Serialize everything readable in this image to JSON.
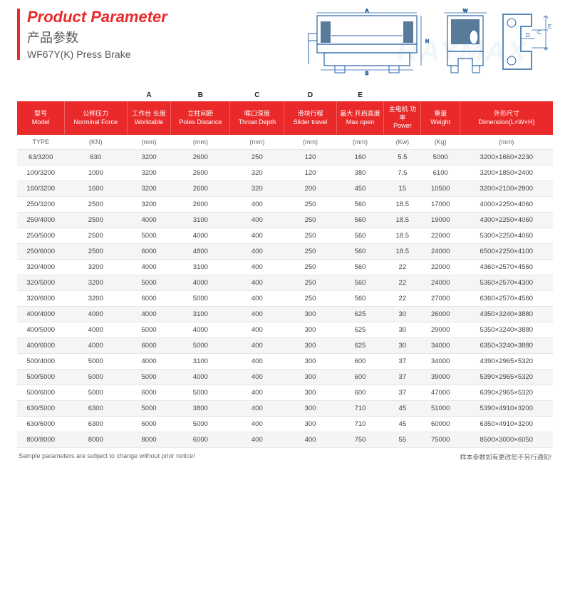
{
  "header": {
    "title_en": "Product Parameter",
    "title_cn": "产品参数",
    "subtitle": "WF67Y(K) Press Brake",
    "watermark": "RAYMAX"
  },
  "topcols": [
    "A",
    "B",
    "C",
    "D",
    "E"
  ],
  "columns": [
    {
      "cn": "型号",
      "en": "Model",
      "w": 56
    },
    {
      "cn": "公称压力",
      "en": "Norminal Force",
      "w": 74
    },
    {
      "cn": "工作台\n长度",
      "en": "Worktable",
      "w": 52
    },
    {
      "cn": "立柱间距",
      "en": "Poles Distance",
      "w": 70
    },
    {
      "cn": "喉口深度",
      "en": "Throat Depth",
      "w": 64
    },
    {
      "cn": "滑块行程",
      "en": "Slider travel",
      "w": 62
    },
    {
      "cn": "最大\n开启高度",
      "en": "Max open",
      "w": 56
    },
    {
      "cn": "主电机\n功率",
      "en": "Power",
      "w": 44
    },
    {
      "cn": "重量",
      "en": "Weight",
      "w": 46
    },
    {
      "cn": "外形尺寸",
      "en": "Dimension(L×W×H)",
      "w": 110
    }
  ],
  "units": [
    "TYPE",
    "(KN)",
    "(mm)",
    "(mm)",
    "(mm)",
    "(mm)",
    "(mm)",
    "(Kw)",
    "(Kg)",
    "(mm)"
  ],
  "rows": [
    [
      "63/3200",
      "630",
      "3200",
      "2600",
      "250",
      "120",
      "160",
      "5.5",
      "5000",
      "3200×1660×2230"
    ],
    [
      "100/3200",
      "1000",
      "3200",
      "2600",
      "320",
      "120",
      "380",
      "7.5",
      "6100",
      "3200×1850×2400"
    ],
    [
      "160/3200",
      "1600",
      "3200",
      "2600",
      "320",
      "200",
      "450",
      "15",
      "10500",
      "3200×2100×2800"
    ],
    [
      "250/3200",
      "2500",
      "3200",
      "2600",
      "400",
      "250",
      "560",
      "18.5",
      "17000",
      "4000×2250×4060"
    ],
    [
      "250/4000",
      "2500",
      "4000",
      "3100",
      "400",
      "250",
      "560",
      "18.5",
      "19000",
      "4300×2250×4060"
    ],
    [
      "250/5000",
      "2500",
      "5000",
      "4000",
      "400",
      "250",
      "560",
      "18.5",
      "22000",
      "5300×2250×4060"
    ],
    [
      "250/6000",
      "2500",
      "6000",
      "4800",
      "400",
      "250",
      "560",
      "18.5",
      "24000",
      "6500×2250×4100"
    ],
    [
      "320/4000",
      "3200",
      "4000",
      "3100",
      "400",
      "250",
      "560",
      "22",
      "22000",
      "4360×2570×4560"
    ],
    [
      "320/5000",
      "3200",
      "5000",
      "4000",
      "400",
      "250",
      "560",
      "22",
      "24000",
      "5360×2570×4300"
    ],
    [
      "320/6000",
      "3200",
      "6000",
      "5000",
      "400",
      "250",
      "560",
      "22",
      "27000",
      "6360×2570×4560"
    ],
    [
      "400/4000",
      "4000",
      "4000",
      "3100",
      "400",
      "300",
      "625",
      "30",
      "26000",
      "4350×3240×3880"
    ],
    [
      "400/5000",
      "4000",
      "5000",
      "4000",
      "400",
      "300",
      "625",
      "30",
      "29000",
      "5350×3240×3880"
    ],
    [
      "400/6000",
      "4000",
      "6000",
      "5000",
      "400",
      "300",
      "625",
      "30",
      "34000",
      "6350×3240×3880"
    ],
    [
      "500/4000",
      "5000",
      "4000",
      "3100",
      "400",
      "300",
      "600",
      "37",
      "34000",
      "4390×2965×5320"
    ],
    [
      "500/5000",
      "5000",
      "5000",
      "4000",
      "400",
      "300",
      "600",
      "37",
      "39000",
      "5390×2965×5320"
    ],
    [
      "500/6000",
      "5000",
      "6000",
      "5000",
      "400",
      "300",
      "600",
      "37",
      "47000",
      "6390×2965×5320"
    ],
    [
      "630/5000",
      "6300",
      "5000",
      "3800",
      "400",
      "300",
      "710",
      "45",
      "51000",
      "5390×4910×3200"
    ],
    [
      "630/6000",
      "6300",
      "6000",
      "5000",
      "400",
      "300",
      "710",
      "45",
      "60000",
      "6350×4910×3200"
    ],
    [
      "800/8000",
      "8000",
      "8000",
      "6000",
      "400",
      "400",
      "750",
      "55",
      "75000",
      "8500×3000×6050"
    ]
  ],
  "footer": {
    "left": "Sample parameters are subject to change without prior notice!",
    "right": "样本参数如有更改恕不另行通知!"
  }
}
